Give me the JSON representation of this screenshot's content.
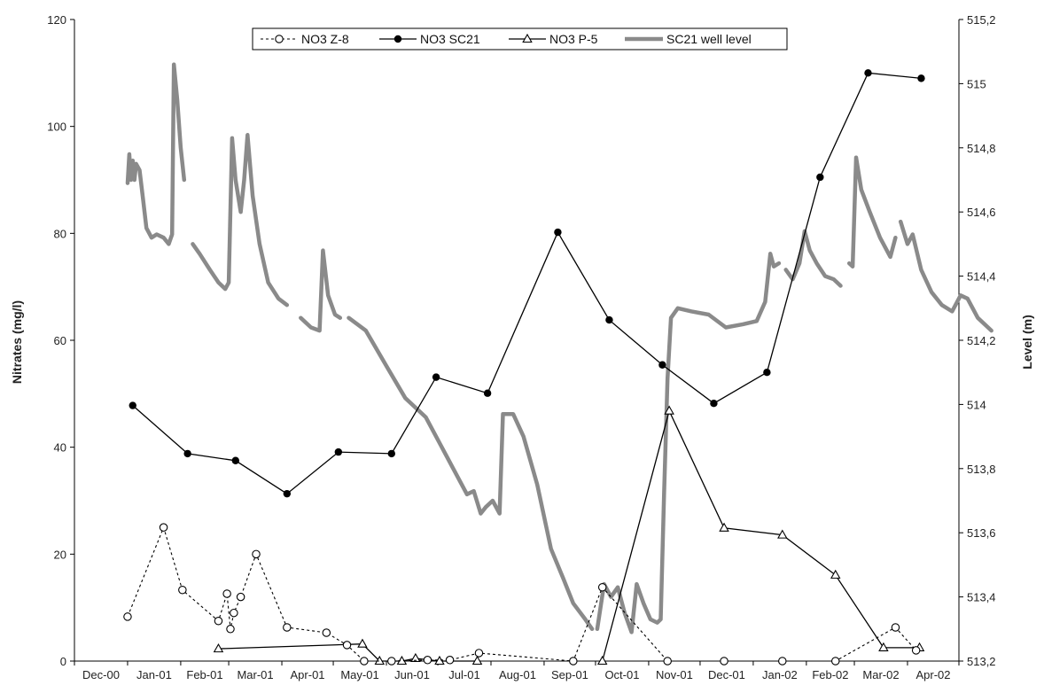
{
  "chart_data": {
    "type": "line",
    "legend_position": "top-center",
    "grid": false,
    "xlabel": "",
    "ylabel": "Nitrates (mg/l)",
    "y2label": "Level (m)",
    "x_tick_labels": [
      "Dec-00",
      "Jan-01",
      "Feb-01",
      "Mar-01",
      "Apr-01",
      "May-01",
      "Jun-01",
      "Jul-01",
      "Aug-01",
      "Sep-01",
      "Oct-01",
      "Nov-01",
      "Dec-01",
      "Jan-02",
      "Feb-02",
      "Mar-02",
      "Apr-02"
    ],
    "x_range": [
      "Dec-00",
      "Apr-02 (end)"
    ],
    "ylim": [
      0,
      120
    ],
    "y_ticks": [
      0,
      20,
      40,
      60,
      80,
      100,
      120
    ],
    "y_tick_labels": [
      "0",
      "20",
      "40",
      "60",
      "80",
      "100",
      "120"
    ],
    "y2lim": [
      513.2,
      515.2
    ],
    "y2_ticks": [
      513.2,
      513.4,
      513.6,
      513.8,
      514.0,
      514.2,
      514.4,
      514.6,
      514.8,
      515.0,
      515.2
    ],
    "y2_tick_labels": [
      "513,2",
      "513,4",
      "513,6",
      "513,8",
      "514",
      "514,2",
      "514,4",
      "514,6",
      "514,8",
      "515",
      "515,2"
    ],
    "colors": {
      "nitrate": "#000000",
      "level": "#8a8a8a"
    },
    "series": [
      {
        "name": "NO3 Z-8",
        "axis": "left",
        "style": "dotted-open-circle",
        "points": [
          {
            "x": "2001-01-01",
            "y": 8.3
          },
          {
            "x": "2001-01-22",
            "y": 25.0
          },
          {
            "x": "2001-02-02",
            "y": 13.3
          },
          {
            "x": "2001-02-23",
            "y": 7.5
          },
          {
            "x": "2001-02-28",
            "y": 12.6
          },
          {
            "x": "2001-03-02",
            "y": 6.0
          },
          {
            "x": "2001-03-04",
            "y": 9.0
          },
          {
            "x": "2001-03-08",
            "y": 12.0
          },
          {
            "x": "2001-03-17",
            "y": 20.0
          },
          {
            "x": "2001-04-04",
            "y": 6.3
          },
          {
            "x": "2001-04-27",
            "y": 5.3
          },
          {
            "x": "2001-05-09",
            "y": 3.0
          },
          {
            "x": "2001-05-19",
            "y": 0.0
          },
          {
            "x": "2001-06-04",
            "y": 0.0
          },
          {
            "x": "2001-06-25",
            "y": 0.2
          },
          {
            "x": "2001-07-08",
            "y": 0.2
          },
          {
            "x": "2001-07-25",
            "y": 1.5
          },
          {
            "x": "2001-09-18",
            "y": 0.0
          },
          {
            "x": "2001-10-05",
            "y": 13.8
          },
          {
            "x": "2001-11-12",
            "y": 0.0
          },
          {
            "x": "2001-12-15",
            "y": 0.0
          },
          {
            "x": "2002-01-18",
            "y": 0.0
          },
          {
            "x": "2002-02-18",
            "y": 0.0
          },
          {
            "x": "2002-03-25",
            "y": 6.3
          },
          {
            "x": "2002-04-06",
            "y": 2.0
          }
        ]
      },
      {
        "name": "NO3 SC21",
        "axis": "left",
        "style": "solid-filled-circle",
        "points": [
          {
            "x": "2001-01-04",
            "y": 47.8
          },
          {
            "x": "2001-02-05",
            "y": 38.8
          },
          {
            "x": "2001-03-05",
            "y": 37.5
          },
          {
            "x": "2001-04-04",
            "y": 31.3
          },
          {
            "x": "2001-05-04",
            "y": 39.1
          },
          {
            "x": "2001-06-04",
            "y": 38.8
          },
          {
            "x": "2001-06-30",
            "y": 53.1
          },
          {
            "x": "2001-07-30",
            "y": 50.1
          },
          {
            "x": "2001-09-09",
            "y": 80.2
          },
          {
            "x": "2001-10-09",
            "y": 63.8
          },
          {
            "x": "2001-11-09",
            "y": 55.4
          },
          {
            "x": "2001-12-09",
            "y": 48.2
          },
          {
            "x": "2002-01-09",
            "y": 54.0
          },
          {
            "x": "2002-02-09",
            "y": 90.5
          },
          {
            "x": "2002-03-09",
            "y": 110.0
          },
          {
            "x": "2002-04-09",
            "y": 109.0
          }
        ]
      },
      {
        "name": "NO3 P-5",
        "axis": "left",
        "style": "solid-open-triangle",
        "segments": [
          [
            {
              "x": "2001-02-23",
              "y": 2.3
            },
            {
              "x": "2001-05-18",
              "y": 3.2
            },
            {
              "x": "2001-05-28",
              "y": 0.0
            },
            {
              "x": "2001-06-10",
              "y": 0.0
            },
            {
              "x": "2001-06-18",
              "y": 0.5
            },
            {
              "x": "2001-07-02",
              "y": 0.0
            },
            {
              "x": "2001-07-24",
              "y": 0.0
            }
          ],
          [
            {
              "x": "2001-10-05",
              "y": 0.0
            },
            {
              "x": "2001-11-13",
              "y": 46.8
            },
            {
              "x": "2001-12-15",
              "y": 24.9
            },
            {
              "x": "2002-01-18",
              "y": 23.6
            },
            {
              "x": "2002-02-18",
              "y": 16.1
            },
            {
              "x": "2002-03-18",
              "y": 2.5
            },
            {
              "x": "2002-04-08",
              "y": 2.5
            }
          ]
        ]
      },
      {
        "name": "SC21 well level",
        "axis": "right",
        "style": "thick-gray-line",
        "segments": [
          [
            {
              "x": "2001-01-01",
              "y": 514.69
            },
            {
              "x": "2001-01-02",
              "y": 514.78
            },
            {
              "x": "2001-01-03",
              "y": 514.7
            },
            {
              "x": "2001-01-04",
              "y": 514.76
            },
            {
              "x": "2001-01-05",
              "y": 514.7
            },
            {
              "x": "2001-01-06",
              "y": 514.75
            },
            {
              "x": "2001-01-08",
              "y": 514.73
            },
            {
              "x": "2001-01-10",
              "y": 514.64
            },
            {
              "x": "2001-01-12",
              "y": 514.55
            },
            {
              "x": "2001-01-15",
              "y": 514.52
            },
            {
              "x": "2001-01-18",
              "y": 514.53
            },
            {
              "x": "2001-01-22",
              "y": 514.52
            },
            {
              "x": "2001-01-25",
              "y": 514.5
            },
            {
              "x": "2001-01-27",
              "y": 514.53
            },
            {
              "x": "2001-01-28",
              "y": 515.06
            },
            {
              "x": "2001-01-30",
              "y": 514.95
            },
            {
              "x": "2001-02-01",
              "y": 514.8
            },
            {
              "x": "2001-02-03",
              "y": 514.7
            }
          ],
          [
            {
              "x": "2001-02-08",
              "y": 514.5
            },
            {
              "x": "2001-02-12",
              "y": 514.47
            },
            {
              "x": "2001-02-18",
              "y": 514.42
            },
            {
              "x": "2001-02-23",
              "y": 514.38
            },
            {
              "x": "2001-02-27",
              "y": 514.36
            },
            {
              "x": "2001-03-01",
              "y": 514.38
            },
            {
              "x": "2001-03-03",
              "y": 514.83
            },
            {
              "x": "2001-03-05",
              "y": 514.7
            },
            {
              "x": "2001-03-08",
              "y": 514.6
            },
            {
              "x": "2001-03-10",
              "y": 514.7
            },
            {
              "x": "2001-03-12",
              "y": 514.84
            },
            {
              "x": "2001-03-15",
              "y": 514.65
            },
            {
              "x": "2001-03-19",
              "y": 514.5
            },
            {
              "x": "2001-03-24",
              "y": 514.38
            },
            {
              "x": "2001-03-30",
              "y": 514.33
            },
            {
              "x": "2001-04-04",
              "y": 514.31
            }
          ],
          [
            {
              "x": "2001-04-12",
              "y": 514.27
            },
            {
              "x": "2001-04-18",
              "y": 514.24
            },
            {
              "x": "2001-04-23",
              "y": 514.23
            },
            {
              "x": "2001-04-25",
              "y": 514.48
            },
            {
              "x": "2001-04-28",
              "y": 514.34
            },
            {
              "x": "2001-05-02",
              "y": 514.28
            },
            {
              "x": "2001-05-05",
              "y": 514.27
            }
          ],
          [
            {
              "x": "2001-05-10",
              "y": 514.27
            },
            {
              "x": "2001-05-20",
              "y": 514.23
            },
            {
              "x": "2001-06-01",
              "y": 514.12
            },
            {
              "x": "2001-06-12",
              "y": 514.02
            },
            {
              "x": "2001-06-24",
              "y": 513.96
            },
            {
              "x": "2001-07-03",
              "y": 513.87
            },
            {
              "x": "2001-07-10",
              "y": 513.8
            },
            {
              "x": "2001-07-18",
              "y": 513.72
            },
            {
              "x": "2001-07-22",
              "y": 513.73
            },
            {
              "x": "2001-07-26",
              "y": 513.66
            },
            {
              "x": "2001-07-29",
              "y": 513.68
            },
            {
              "x": "2001-08-02",
              "y": 513.7
            },
            {
              "x": "2001-08-06",
              "y": 513.66
            },
            {
              "x": "2001-08-08",
              "y": 513.97
            },
            {
              "x": "2001-08-14",
              "y": 513.97
            },
            {
              "x": "2001-08-20",
              "y": 513.9
            },
            {
              "x": "2001-08-28",
              "y": 513.75
            },
            {
              "x": "2001-09-05",
              "y": 513.55
            },
            {
              "x": "2001-09-12",
              "y": 513.46
            },
            {
              "x": "2001-09-18",
              "y": 513.38
            },
            {
              "x": "2001-09-25",
              "y": 513.33
            },
            {
              "x": "2001-09-29",
              "y": 513.3
            }
          ],
          [
            {
              "x": "2001-10-02",
              "y": 513.3
            },
            {
              "x": "2001-10-06",
              "y": 513.44
            },
            {
              "x": "2001-10-10",
              "y": 513.4
            },
            {
              "x": "2001-10-14",
              "y": 513.43
            },
            {
              "x": "2001-10-18",
              "y": 513.35
            },
            {
              "x": "2001-10-22",
              "y": 513.29
            },
            {
              "x": "2001-10-25",
              "y": 513.44
            },
            {
              "x": "2001-10-29",
              "y": 513.38
            },
            {
              "x": "2001-11-02",
              "y": 513.33
            },
            {
              "x": "2001-11-06",
              "y": 513.32
            },
            {
              "x": "2001-11-08",
              "y": 513.33
            },
            {
              "x": "2001-11-10",
              "y": 513.72
            },
            {
              "x": "2001-11-12",
              "y": 514.08
            },
            {
              "x": "2001-11-14",
              "y": 514.27
            },
            {
              "x": "2001-11-18",
              "y": 514.3
            },
            {
              "x": "2001-11-26",
              "y": 514.29
            },
            {
              "x": "2001-12-06",
              "y": 514.28
            },
            {
              "x": "2001-12-16",
              "y": 514.24
            },
            {
              "x": "2001-12-26",
              "y": 514.25
            },
            {
              "x": "2002-01-03",
              "y": 514.26
            },
            {
              "x": "2002-01-08",
              "y": 514.32
            },
            {
              "x": "2002-01-11",
              "y": 514.47
            },
            {
              "x": "2002-01-13",
              "y": 514.43
            },
            {
              "x": "2002-01-16",
              "y": 514.44
            }
          ],
          [
            {
              "x": "2002-01-20",
              "y": 514.42
            },
            {
              "x": "2002-01-24",
              "y": 514.39
            },
            {
              "x": "2002-01-28",
              "y": 514.44
            },
            {
              "x": "2002-01-31",
              "y": 514.54
            },
            {
              "x": "2002-02-03",
              "y": 514.48
            },
            {
              "x": "2002-02-07",
              "y": 514.44
            },
            {
              "x": "2002-02-12",
              "y": 514.4
            },
            {
              "x": "2002-02-17",
              "y": 514.39
            },
            {
              "x": "2002-02-21",
              "y": 514.37
            }
          ],
          [
            {
              "x": "2002-02-26",
              "y": 514.44
            },
            {
              "x": "2002-02-28",
              "y": 514.43
            },
            {
              "x": "2002-03-02",
              "y": 514.77
            },
            {
              "x": "2002-03-05",
              "y": 514.67
            },
            {
              "x": "2002-03-10",
              "y": 514.6
            },
            {
              "x": "2002-03-16",
              "y": 514.52
            },
            {
              "x": "2002-03-22",
              "y": 514.46
            },
            {
              "x": "2002-03-25",
              "y": 514.52
            }
          ],
          [
            {
              "x": "2002-03-28",
              "y": 514.57
            },
            {
              "x": "2002-04-01",
              "y": 514.5
            },
            {
              "x": "2002-04-04",
              "y": 514.53
            },
            {
              "x": "2002-04-09",
              "y": 514.42
            },
            {
              "x": "2002-04-15",
              "y": 514.35
            },
            {
              "x": "2002-04-21",
              "y": 514.31
            },
            {
              "x": "2002-04-27",
              "y": 514.29
            },
            {
              "x": "2002-05-02",
              "y": 514.34
            },
            {
              "x": "2002-05-06",
              "y": 514.33
            },
            {
              "x": "2002-05-12",
              "y": 514.27
            },
            {
              "x": "2002-05-20",
              "y": 514.23
            }
          ]
        ]
      }
    ]
  }
}
